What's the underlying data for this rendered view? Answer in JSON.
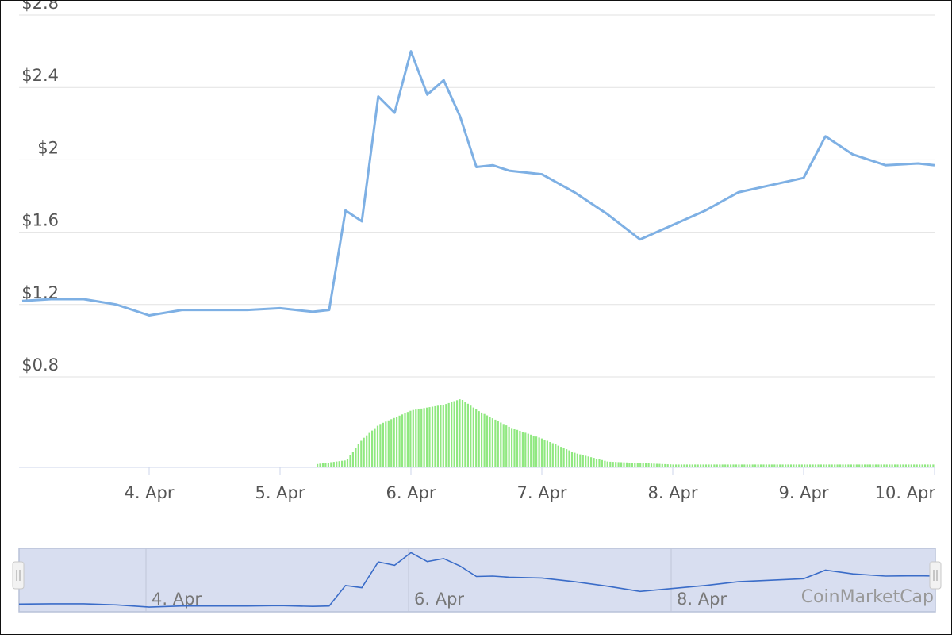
{
  "chart_data": {
    "type": "line",
    "price_series": {
      "color": "#7eb0e4",
      "x": [
        "3. Apr 00:00",
        "3. Apr 06:00",
        "3. Apr 12:00",
        "3. Apr 18:00",
        "4. Apr 00:00",
        "4. Apr 06:00",
        "4. Apr 12:00",
        "4. Apr 18:00",
        "5. Apr 00:00",
        "5. Apr 06:00",
        "5. Apr 09:00",
        "5. Apr 12:00",
        "5. Apr 15:00",
        "5. Apr 18:00",
        "5. Apr 21:00",
        "6. Apr 00:00",
        "6. Apr 03:00",
        "6. Apr 06:00",
        "6. Apr 09:00",
        "6. Apr 12:00",
        "6. Apr 15:00",
        "6. Apr 18:00",
        "7. Apr 00:00",
        "7. Apr 06:00",
        "7. Apr 12:00",
        "7. Apr 18:00",
        "8. Apr 00:00",
        "8. Apr 06:00",
        "8. Apr 12:00",
        "8. Apr 18:00",
        "9. Apr 00:00",
        "9. Apr 04:00",
        "9. Apr 09:00",
        "9. Apr 15:00",
        "9. Apr 21:00",
        "10. Apr 00:00"
      ],
      "y": [
        1.22,
        1.23,
        1.23,
        1.2,
        1.14,
        1.17,
        1.17,
        1.17,
        1.18,
        1.16,
        1.17,
        1.72,
        1.66,
        2.35,
        2.26,
        2.6,
        2.36,
        2.44,
        2.24,
        1.96,
        1.97,
        1.94,
        1.92,
        1.82,
        1.7,
        1.56,
        1.64,
        1.72,
        1.82,
        1.86,
        1.9,
        2.13,
        2.03,
        1.97,
        1.98,
        1.97
      ]
    },
    "volume_series": {
      "color": "#90e880",
      "x": [
        "5. Apr 06:00",
        "5. Apr 12:00",
        "5. Apr 15:00",
        "5. Apr 18:00",
        "6. Apr 00:00",
        "6. Apr 06:00",
        "6. Apr 09:00",
        "6. Apr 12:00",
        "6. Apr 18:00",
        "7. Apr 00:00",
        "7. Apr 06:00",
        "7. Apr 12:00",
        "8. Apr 00:00",
        "9. Apr 00:00",
        "10. Apr 00:00"
      ],
      "y": [
        0.02,
        0.05,
        0.2,
        0.3,
        0.4,
        0.44,
        0.48,
        0.4,
        0.28,
        0.2,
        0.1,
        0.04,
        0.02,
        0.02,
        0.02
      ]
    },
    "y_ticks": [
      "$2.8",
      "$2.4",
      "$2",
      "$1.6",
      "$1.2",
      "$0.8"
    ],
    "ylim": [
      0.8,
      2.8
    ],
    "x_ticks": [
      "4. Apr",
      "5. Apr",
      "6. Apr",
      "7. Apr",
      "8. Apr",
      "9. Apr",
      "10. Apr"
    ],
    "grid": true,
    "navigator": {
      "x_ticks": [
        "4. Apr",
        "6. Apr",
        "8. Apr"
      ],
      "fill_color": "#d8def0",
      "line_color": "#3a6cc8"
    }
  },
  "watermark": "CoinMarketCap"
}
